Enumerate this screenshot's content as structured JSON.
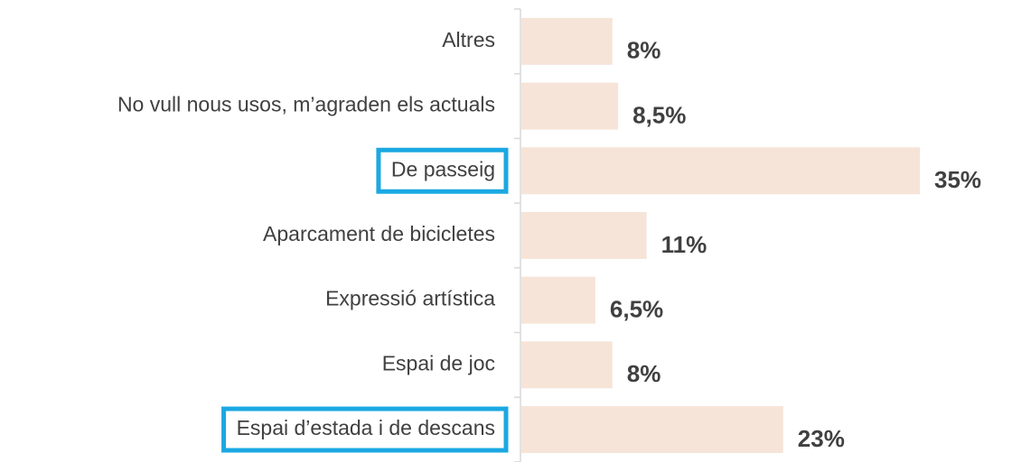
{
  "chart_data": {
    "type": "barh",
    "categories": [
      "Altres",
      "No vull nous usos, m’agraden els actuals",
      "De passeig",
      "Aparcament de bicicletes",
      "Expressió artística",
      "Espai de joc",
      "Espai d’estada i de descans"
    ],
    "values": [
      8,
      8.5,
      35,
      11,
      6.5,
      8,
      23
    ],
    "value_labels": [
      "8%",
      "8,5%",
      "35%",
      "11%",
      "6,5%",
      "8%",
      "23%"
    ],
    "color": "#f6e4d8",
    "highlight": [
      2,
      6
    ],
    "highlight_color": "#1ba8e2"
  }
}
